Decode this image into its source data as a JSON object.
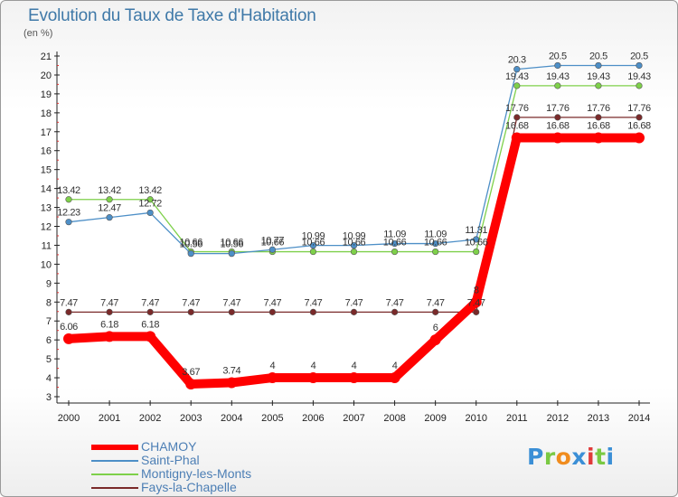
{
  "chart_data": {
    "type": "line",
    "title": "Evolution du Taux de Taxe d'Habitation",
    "subtitle": "(en %)",
    "x": [
      "2000",
      "2001",
      "2002",
      "2003",
      "2004",
      "2005",
      "2006",
      "2007",
      "2008",
      "2009",
      "2010",
      "2011",
      "2012",
      "2013",
      "2014"
    ],
    "ylim": [
      3,
      21
    ],
    "yticks": [
      3,
      4,
      5,
      6,
      7,
      8,
      9,
      10,
      11,
      12,
      13,
      14,
      15,
      16,
      17,
      18,
      19,
      20,
      21
    ],
    "grid": false,
    "legend_position": "bottom-left",
    "series": [
      {
        "name": "CHAMOY",
        "color": "#ff0000",
        "values": [
          6.06,
          6.18,
          6.18,
          3.67,
          3.74,
          4,
          4,
          4,
          4,
          6,
          8,
          16.68,
          16.68,
          16.68,
          16.68
        ],
        "labels": [
          "6.06",
          "6.18",
          "6.18",
          "3.67",
          "3.74",
          "4",
          "4",
          "4",
          "4",
          "6",
          "8",
          "16.68",
          "16.68",
          "16.68",
          "16.68"
        ]
      },
      {
        "name": "Saint-Phal",
        "color": "#4d8fc7",
        "values": [
          12.23,
          12.47,
          12.72,
          10.56,
          10.56,
          10.77,
          10.99,
          10.99,
          11.09,
          11.09,
          11.31,
          20.3,
          20.5,
          20.5,
          20.5
        ],
        "labels": [
          "12.23",
          "12.47",
          "12.72",
          "10.56",
          "10.56",
          "10.77",
          "10.99",
          "10.99",
          "11.09",
          "11.09",
          "11.31",
          "20.3",
          "20.5",
          "20.5",
          "20.5"
        ]
      },
      {
        "name": "Montigny-les-Monts",
        "color": "#7ed04a",
        "values": [
          13.42,
          13.42,
          13.42,
          10.66,
          10.66,
          10.66,
          10.66,
          10.66,
          10.66,
          10.66,
          10.66,
          19.43,
          19.43,
          19.43,
          19.43
        ],
        "labels": [
          "13.42",
          "13.42",
          "13.42",
          "10.66",
          "10.66",
          "10.66",
          "10.66",
          "10.66",
          "10.66",
          "10.66",
          "10.66",
          "19.43",
          "19.43",
          "19.43",
          "19.43"
        ]
      },
      {
        "name": "Fays-la-Chapelle",
        "color": "#7a2a2a",
        "values": [
          7.47,
          7.47,
          7.47,
          7.47,
          7.47,
          7.47,
          7.47,
          7.47,
          7.47,
          7.47,
          7.47,
          17.76,
          17.76,
          17.76,
          17.76
        ],
        "labels": [
          "7.47",
          "7.47",
          "7.47",
          "7.47",
          "7.47",
          "7.47",
          "7.47",
          "7.47",
          "7.47",
          "7.47",
          "7.47",
          "17.76",
          "17.76",
          "17.76",
          "17.76"
        ]
      }
    ]
  },
  "logo": {
    "letters": [
      "P",
      "r",
      "o",
      "x",
      "i",
      "t",
      "i"
    ],
    "colors": [
      "#3b8fd6",
      "#7ac943",
      "#f08c1e",
      "#3b8fd6",
      "#e03a3a",
      "#7ac943",
      "#3b8fd6"
    ]
  }
}
